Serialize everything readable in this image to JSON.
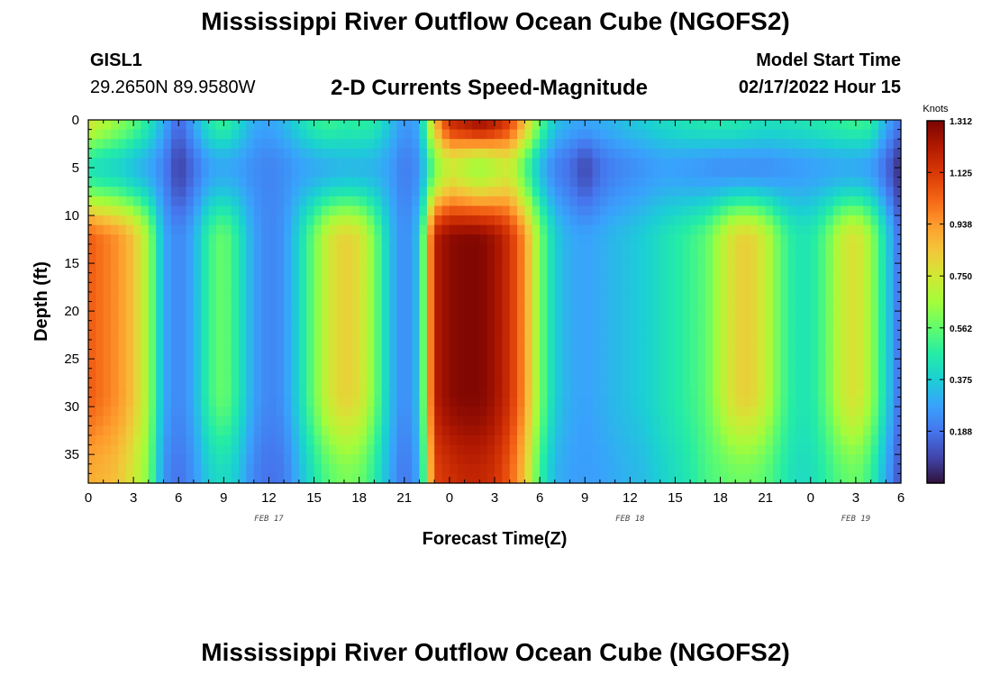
{
  "page": {
    "title": "Mississippi River Outflow Ocean Cube (NGOFS2)",
    "station_id": "GISL1",
    "station_coords": "29.2650N  89.9580W",
    "plot_title": "2-D Currents Speed-Magnitude",
    "model_start_label": "Model Start Time",
    "model_start_value": "02/17/2022 Hour 15",
    "bottom_title": "Mississippi River Outflow Ocean Cube (NGOFS2)"
  },
  "chart_data": {
    "type": "heatmap",
    "title": "2-D Currents Speed-Magnitude",
    "xlabel": "Forecast Time(Z)",
    "ylabel": "Depth (ft)",
    "x_range_hours": [
      0,
      54
    ],
    "y_range_ft": [
      0,
      38
    ],
    "y_inverted": true,
    "x_tick_labels": [
      "0",
      "3",
      "6",
      "9",
      "12",
      "15",
      "18",
      "21",
      "0",
      "3",
      "6",
      "9",
      "12",
      "15",
      "18",
      "21",
      "0",
      "3",
      "6"
    ],
    "y_tick_labels": [
      "0",
      "5",
      "10",
      "15",
      "20",
      "25",
      "30",
      "35"
    ],
    "date_labels": [
      {
        "text": "FEB 17",
        "hour": 12
      },
      {
        "text": "FEB 18",
        "hour": 36
      },
      {
        "text": "FEB 19",
        "hour": 51
      }
    ],
    "colorbar": {
      "unit": "Knots",
      "min": 0.0,
      "max": 1.312,
      "tick_labels": [
        "1.312",
        "1.125",
        "0.938",
        "0.750",
        "0.562",
        "0.375",
        "0.188"
      ],
      "colormap": [
        "#30123b",
        "#4145ab",
        "#4675ed",
        "#39a2fc",
        "#1bcfd4",
        "#24eca6",
        "#61fc6c",
        "#a4fc3b",
        "#d1e834",
        "#f3c63a",
        "#fe9b2d",
        "#f36315",
        "#d93806",
        "#b11901",
        "#7a0402"
      ]
    },
    "profiles": {
      "hours": [
        0,
        1,
        2,
        3,
        4,
        5,
        6,
        7,
        8,
        9,
        10,
        11,
        12,
        13,
        14,
        15,
        16,
        17,
        18,
        19,
        20,
        21,
        22,
        23,
        24,
        25,
        26,
        27,
        28,
        29,
        30,
        31,
        32,
        33,
        34,
        35,
        36,
        37,
        38,
        39,
        40,
        41,
        42,
        43,
        44,
        45,
        46,
        47,
        48,
        49,
        50,
        51,
        52,
        53,
        54
      ],
      "surface": [
        0.75,
        0.68,
        0.62,
        0.55,
        0.45,
        0.3,
        0.15,
        0.28,
        0.44,
        0.5,
        0.4,
        0.3,
        0.28,
        0.32,
        0.4,
        0.47,
        0.5,
        0.47,
        0.48,
        0.46,
        0.35,
        0.25,
        0.3,
        0.85,
        1.15,
        1.2,
        1.25,
        1.2,
        1.1,
        0.85,
        0.55,
        0.35,
        0.3,
        0.28,
        0.3,
        0.32,
        0.35,
        0.37,
        0.4,
        0.42,
        0.44,
        0.45,
        0.45,
        0.45,
        0.43,
        0.42,
        0.42,
        0.43,
        0.44,
        0.46,
        0.48,
        0.5,
        0.48,
        0.3,
        0.18
      ],
      "mid": [
        0.45,
        0.42,
        0.4,
        0.35,
        0.3,
        0.22,
        0.08,
        0.18,
        0.28,
        0.3,
        0.28,
        0.24,
        0.22,
        0.24,
        0.28,
        0.3,
        0.32,
        0.33,
        0.33,
        0.32,
        0.28,
        0.2,
        0.25,
        0.6,
        0.75,
        0.7,
        0.65,
        0.7,
        0.75,
        0.55,
        0.35,
        0.22,
        0.18,
        0.1,
        0.18,
        0.22,
        0.24,
        0.26,
        0.28,
        0.28,
        0.27,
        0.26,
        0.25,
        0.25,
        0.25,
        0.25,
        0.26,
        0.27,
        0.28,
        0.29,
        0.3,
        0.3,
        0.28,
        0.18,
        0.04
      ],
      "deep": [
        1.05,
        1.0,
        0.95,
        0.85,
        0.65,
        0.3,
        0.22,
        0.3,
        0.5,
        0.58,
        0.45,
        0.28,
        0.22,
        0.25,
        0.4,
        0.58,
        0.75,
        0.82,
        0.78,
        0.6,
        0.35,
        0.22,
        0.35,
        1.2,
        1.28,
        1.3,
        1.3,
        1.25,
        1.15,
        0.95,
        0.6,
        0.38,
        0.3,
        0.28,
        0.3,
        0.33,
        0.35,
        0.38,
        0.42,
        0.46,
        0.5,
        0.55,
        0.68,
        0.8,
        0.82,
        0.72,
        0.55,
        0.45,
        0.45,
        0.55,
        0.72,
        0.78,
        0.65,
        0.4,
        0.15
      ],
      "bottom": [
        0.9,
        0.88,
        0.85,
        0.75,
        0.6,
        0.25,
        0.18,
        0.25,
        0.38,
        0.42,
        0.35,
        0.22,
        0.18,
        0.2,
        0.32,
        0.45,
        0.55,
        0.6,
        0.58,
        0.48,
        0.3,
        0.18,
        0.3,
        1.1,
        1.15,
        1.18,
        1.18,
        1.15,
        1.05,
        0.85,
        0.5,
        0.32,
        0.28,
        0.27,
        0.28,
        0.3,
        0.32,
        0.34,
        0.38,
        0.42,
        0.46,
        0.52,
        0.55,
        0.58,
        0.58,
        0.55,
        0.48,
        0.42,
        0.42,
        0.48,
        0.55,
        0.58,
        0.5,
        0.3,
        0.1
      ]
    }
  }
}
